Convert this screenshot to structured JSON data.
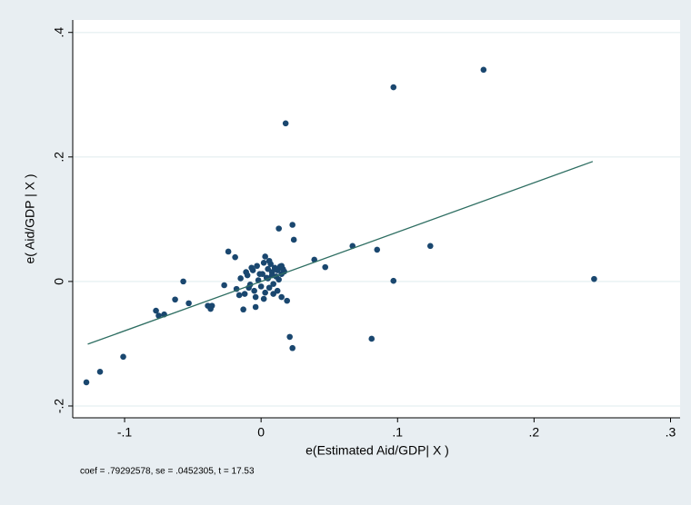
{
  "chart_data": {
    "type": "scatter",
    "xlabel": "e(Estimated Aid/GDP| X )",
    "ylabel": "e( Aid/GDP | X )",
    "note": "coef = .79292578, se = .0452305, t = 17.53",
    "xlim": [
      -0.138,
      0.307
    ],
    "ylim": [
      -0.219,
      0.42
    ],
    "xticks": [
      {
        "value": -0.1,
        "label": "-.1"
      },
      0,
      {
        "value": 0.1,
        "label": ".1"
      },
      {
        "value": 0.2,
        "label": ".2"
      },
      {
        "value": 0.3,
        "label": ".3"
      }
    ],
    "yticks": [
      {
        "value": -0.2,
        "label": "-.2"
      },
      0,
      {
        "value": 0.2,
        "label": ".2"
      },
      {
        "value": 0.4,
        "label": ".4"
      }
    ],
    "grid": true,
    "series": [
      {
        "type": "scatter",
        "color": "#1a476f",
        "x": [
          -0.128,
          -0.118,
          -0.101,
          -0.077,
          -0.075,
          -0.071,
          -0.063,
          -0.057,
          -0.053,
          -0.039,
          -0.036,
          -0.037,
          -0.027,
          -0.024,
          -0.019,
          0.018,
          0.097,
          0.163,
          0.013,
          0.023,
          0.024,
          0.039,
          0.047,
          0.067,
          0.085,
          0.124,
          0.097,
          0.244,
          0.021,
          0.023,
          0.081,
          0.019,
          0.015,
          -0.013,
          -0.004,
          -0.018,
          -0.015,
          -0.012,
          -0.01,
          -0.008,
          -0.006,
          -0.005,
          -0.003,
          -0.002,
          0,
          0.001,
          0.002,
          0.003,
          0.004,
          0.005,
          0.006,
          0.007,
          0.008,
          0.009,
          0.01,
          0.011,
          0.012,
          0.013,
          0.014,
          0.015,
          0.016,
          0.017,
          -0.016,
          -0.011,
          -0.007,
          -0.004,
          -0.001,
          0.002,
          0.006,
          0.009,
          0.012,
          0.003,
          -0.009,
          0.005,
          0.008,
          0.015
        ],
        "values": [
          -0.162,
          -0.145,
          -0.121,
          -0.047,
          -0.055,
          -0.053,
          -0.029,
          0,
          -0.035,
          -0.039,
          -0.039,
          -0.044,
          -0.006,
          0.048,
          0.039,
          0.254,
          0.312,
          0.34,
          0.085,
          0.091,
          0.067,
          0.035,
          0.023,
          0.057,
          0.051,
          0.057,
          0.001,
          0.004,
          -0.089,
          -0.107,
          -0.092,
          -0.031,
          -0.025,
          -0.045,
          -0.041,
          -0.012,
          0.005,
          -0.02,
          0.01,
          -0.005,
          0.018,
          -0.015,
          0.025,
          0.002,
          -0.008,
          0.012,
          0.03,
          -0.018,
          0.006,
          0.02,
          -0.01,
          0.028,
          0.015,
          -0.004,
          0.022,
          0.008,
          0.018,
          0.003,
          0.024,
          0.012,
          0.02,
          0.016,
          -0.022,
          0.015,
          0.022,
          -0.025,
          0.012,
          -0.028,
          0.033,
          -0.02,
          -0.015,
          0.04,
          -0.01,
          0.005,
          0.01,
          0.025
        ]
      },
      {
        "type": "line",
        "color": "#2e6e62",
        "x": [
          -0.127,
          0.243
        ],
        "values": [
          -0.1007,
          0.1927
        ]
      }
    ]
  }
}
